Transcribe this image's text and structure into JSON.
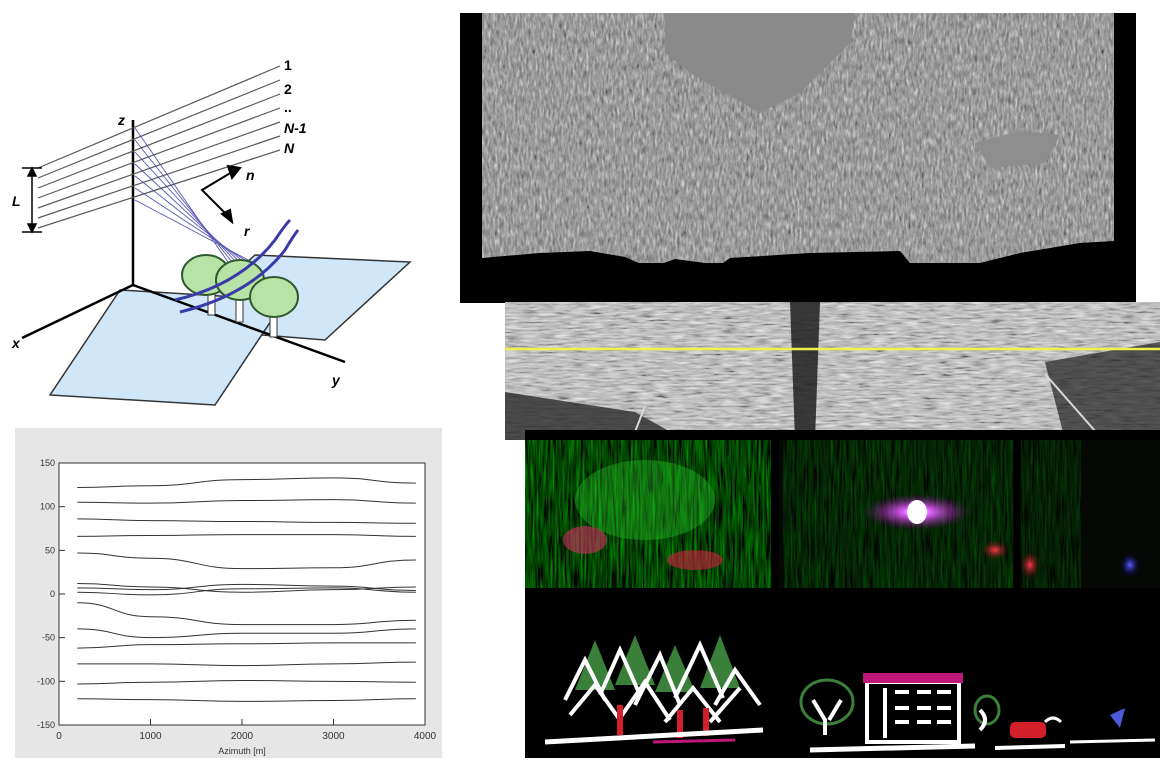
{
  "geometry": {
    "track_labels": [
      "1",
      "2",
      "..",
      "N-1",
      "N"
    ],
    "axis_z": "z",
    "axis_x": "x",
    "axis_y": "y",
    "vec_n": "n",
    "vec_r": "r",
    "length_label": "L",
    "colors": {
      "lines": "#5a5a5a",
      "rays": "#3a3aa8",
      "ground": "#cfe7f8",
      "tree": "#b7e3a6"
    }
  },
  "chart_data": {
    "type": "line",
    "xlabel": "Azimuth [m]",
    "ylabel": "",
    "xlim": [
      0,
      4000
    ],
    "ylim": [
      -150,
      150
    ],
    "xticks": [
      0,
      1000,
      2000,
      3000,
      4000
    ],
    "yticks": [
      150,
      100,
      50,
      0,
      -50,
      -100,
      -150
    ],
    "x": [
      200,
      1000,
      2000,
      3000,
      3900
    ],
    "series": [
      {
        "values": [
          122,
          124,
          131,
          133,
          127
        ]
      },
      {
        "values": [
          105,
          104,
          107,
          108,
          104
        ]
      },
      {
        "values": [
          86,
          84,
          83,
          82,
          81
        ]
      },
      {
        "values": [
          66,
          67,
          68,
          68,
          66
        ]
      },
      {
        "values": [
          47,
          41,
          29,
          30,
          39
        ]
      },
      {
        "values": [
          12,
          8,
          2,
          5,
          8
        ]
      },
      {
        "values": [
          7,
          5,
          11,
          9,
          4
        ]
      },
      {
        "values": [
          2,
          -1,
          6,
          7,
          2
        ]
      },
      {
        "values": [
          -10,
          -26,
          -35,
          -35,
          -30
        ]
      },
      {
        "values": [
          -40,
          -50,
          -45,
          -45,
          -40
        ]
      },
      {
        "values": [
          -62,
          -58,
          -57,
          -56,
          -56
        ]
      },
      {
        "values": [
          -80,
          -80,
          -82,
          -80,
          -78
        ]
      },
      {
        "values": [
          -103,
          -101,
          -99,
          -100,
          -101
        ]
      },
      {
        "values": [
          -120,
          -121,
          -123,
          -122,
          -120
        ]
      }
    ]
  },
  "scene": {
    "colors": {
      "tree": "#3a7f3a",
      "house_roof": "#c0187a",
      "car": "#d21f2a",
      "marker_line": "#f0f04a"
    }
  }
}
